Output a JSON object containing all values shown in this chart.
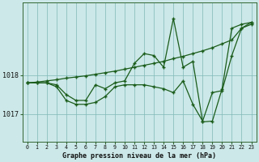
{
  "xlabel": "Graphe pression niveau de la mer (hPa)",
  "background_color": "#cce8e8",
  "grid_color": "#7fb8b8",
  "line_color": "#1a5c1a",
  "hours": [
    0,
    1,
    2,
    3,
    4,
    5,
    6,
    7,
    8,
    9,
    10,
    11,
    12,
    13,
    14,
    15,
    16,
    17,
    18,
    19,
    20,
    21,
    22,
    23
  ],
  "line1": [
    1017.8,
    1017.8,
    1017.8,
    1017.75,
    1017.5,
    1017.35,
    1017.35,
    1017.75,
    1017.65,
    1017.8,
    1017.85,
    1018.3,
    1018.55,
    1018.5,
    1018.2,
    1019.45,
    1018.2,
    1018.35,
    1016.8,
    1016.82,
    1017.65,
    1019.2,
    1019.3,
    1019.35
  ],
  "line2": [
    1017.8,
    1017.8,
    1017.8,
    1017.7,
    1017.35,
    1017.25,
    1017.25,
    1017.3,
    1017.45,
    1017.7,
    1017.75,
    1017.75,
    1017.75,
    1017.7,
    1017.65,
    1017.55,
    1017.85,
    1017.25,
    1016.82,
    1017.55,
    1017.6,
    1018.5,
    1019.2,
    1019.35
  ],
  "line3": [
    1017.8,
    1017.82,
    1017.85,
    1017.88,
    1017.92,
    1017.95,
    1017.98,
    1018.02,
    1018.06,
    1018.1,
    1018.15,
    1018.2,
    1018.25,
    1018.3,
    1018.35,
    1018.42,
    1018.48,
    1018.55,
    1018.62,
    1018.7,
    1018.8,
    1018.9,
    1019.2,
    1019.3
  ],
  "yticks": [
    1017.0,
    1018.0
  ],
  "ylim": [
    1016.3,
    1019.85
  ],
  "xlim": [
    -0.5,
    23.5
  ]
}
